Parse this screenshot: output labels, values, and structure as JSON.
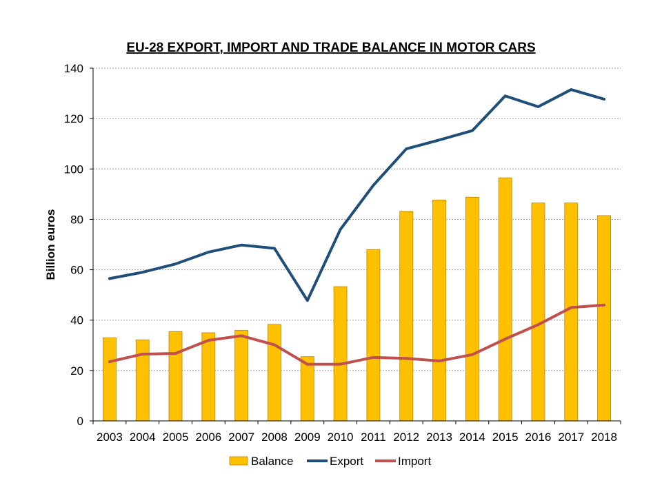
{
  "chart_data": {
    "type": "bar",
    "title": "EU-28 EXPORT, IMPORT AND TRADE BALANCE IN MOTOR CARS",
    "xlabel": "",
    "ylabel": "Billion euros",
    "ylim": [
      0,
      140
    ],
    "yticks": [
      0,
      20,
      40,
      60,
      80,
      100,
      120,
      140
    ],
    "grid": true,
    "legend_position": "bottom",
    "categories": [
      "2003",
      "2004",
      "2005",
      "2006",
      "2007",
      "2008",
      "2009",
      "2010",
      "2011",
      "2012",
      "2013",
      "2014",
      "2015",
      "2016",
      "2017",
      "2018"
    ],
    "series": [
      {
        "name": "Balance",
        "type": "bar",
        "color": "#FFC000",
        "values": [
          33.0,
          32.2,
          35.5,
          35.0,
          36.0,
          38.3,
          25.5,
          53.3,
          68.0,
          83.2,
          87.7,
          88.8,
          96.5,
          86.5,
          86.5,
          81.5
        ]
      },
      {
        "name": "Export",
        "type": "line",
        "color": "#1F4E79",
        "values": [
          56.5,
          59.0,
          62.3,
          67.0,
          69.8,
          68.5,
          47.8,
          76.0,
          93.5,
          108.0,
          111.5,
          115.2,
          129.0,
          124.7,
          131.5,
          127.7
        ]
      },
      {
        "name": "Import",
        "type": "line",
        "color": "#C0504D",
        "values": [
          23.5,
          26.5,
          26.8,
          32.0,
          33.8,
          30.2,
          22.5,
          22.5,
          25.2,
          24.8,
          23.8,
          26.3,
          32.5,
          38.2,
          45.0,
          46.0
        ]
      }
    ]
  }
}
